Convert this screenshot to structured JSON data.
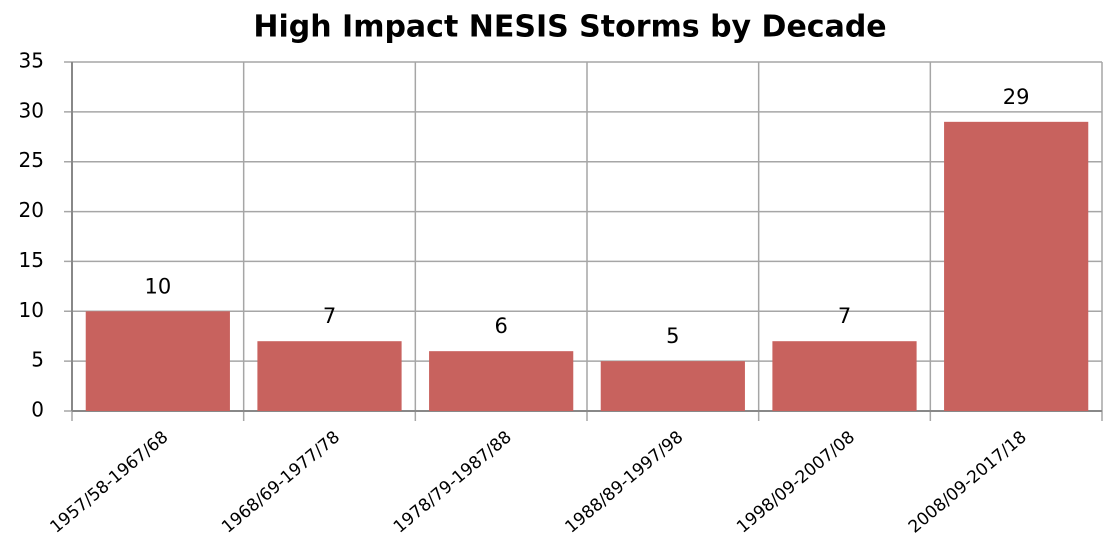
{
  "chart_data": {
    "type": "bar",
    "title": "High Impact NESIS Storms by Decade",
    "categories": [
      "1957/58-1967/68",
      "1968/69-1977/78",
      "1978/79-1987/88",
      "1988/89-1997/98",
      "1998/09-2007/08",
      "2008/09-2017/18"
    ],
    "values": [
      10,
      7,
      6,
      5,
      7,
      29
    ],
    "color": "#c8625e",
    "ylim": [
      0,
      35
    ],
    "yticks": [
      0,
      5,
      10,
      15,
      20,
      25,
      30,
      35
    ],
    "grid": true
  }
}
